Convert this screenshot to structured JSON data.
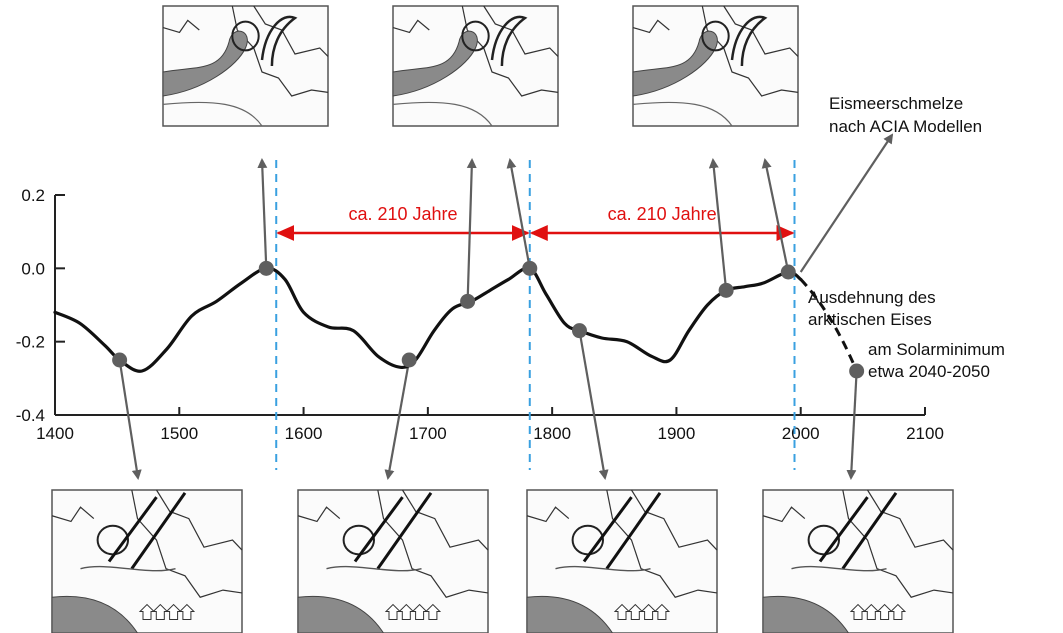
{
  "chart_data": {
    "type": "line",
    "x": [
      1400,
      1420,
      1440,
      1452,
      1470,
      1490,
      1510,
      1530,
      1550,
      1570,
      1585,
      1600,
      1620,
      1640,
      1660,
      1678,
      1690,
      1705,
      1720,
      1735,
      1750,
      1765,
      1782,
      1795,
      1810,
      1822,
      1840,
      1860,
      1880,
      1895,
      1910,
      1925,
      1940,
      1955,
      1970,
      1990,
      2000
    ],
    "y": [
      -0.12,
      -0.15,
      -0.21,
      -0.25,
      -0.28,
      -0.22,
      -0.13,
      -0.09,
      -0.04,
      0.0,
      -0.03,
      -0.12,
      -0.16,
      -0.17,
      -0.24,
      -0.27,
      -0.25,
      -0.17,
      -0.11,
      -0.09,
      -0.06,
      -0.03,
      0.0,
      -0.07,
      -0.15,
      -0.17,
      -0.19,
      -0.2,
      -0.24,
      -0.25,
      -0.17,
      -0.1,
      -0.06,
      -0.05,
      -0.04,
      -0.01,
      -0.03
    ],
    "xlim": [
      1400,
      2100
    ],
    "ylim": [
      -0.4,
      0.2
    ],
    "x_ticks": [
      1400,
      1500,
      1600,
      1700,
      1800,
      1900,
      2000,
      2100
    ],
    "y_ticks": [
      0.2,
      0.0,
      -0.2,
      -0.4
    ],
    "x_tick_labels": [
      "1400",
      "1500",
      "1600",
      "1700",
      "1800",
      "1900",
      "2000",
      "2100"
    ],
    "y_tick_labels": [
      "0.2",
      "0.0",
      "-0.2",
      "-0.4"
    ],
    "markers": [
      {
        "x": 1452,
        "y": -0.25
      },
      {
        "x": 1570,
        "y": 0.0
      },
      {
        "x": 1685,
        "y": -0.25
      },
      {
        "x": 1732,
        "y": -0.09
      },
      {
        "x": 1782,
        "y": 0.0
      },
      {
        "x": 1822,
        "y": -0.17
      },
      {
        "x": 1940,
        "y": -0.06
      },
      {
        "x": 1990,
        "y": -0.01
      },
      {
        "x": 2045,
        "y": -0.28
      }
    ],
    "vlines": [
      1578,
      1782,
      1995
    ],
    "spans": [
      {
        "from": 1578,
        "to": 1782,
        "label": "ca. 210 Jahre"
      },
      {
        "from": 1782,
        "to": 1995,
        "label": "ca. 210 Jahre"
      }
    ],
    "extrapolation": {
      "from_x": 2000,
      "from_y": -0.03,
      "to_x": 2045,
      "to_y": -0.28
    },
    "annotations": [
      {
        "lines": [
          "Eismeerschmelze",
          "nach ACIA Modellen"
        ]
      },
      {
        "lines": [
          "Ausdehnung des",
          "arktischen Eises"
        ]
      },
      {
        "lines": [
          "am Solarminimum",
          "etwa 2040-2050"
        ]
      }
    ],
    "grid": false,
    "title": "",
    "xlabel": "",
    "ylabel": ""
  },
  "colors": {
    "line": "#111111",
    "marker": "#5f5f5f",
    "arrow": "#5f5f5f",
    "span": "#e01010",
    "vline": "#3aa0e0",
    "map_land": "#ffffff",
    "map_sea": "#f4f4f4",
    "map_flow": "#8a8a8a"
  },
  "thumbnails": {
    "top": [
      {
        "name": "map-1580"
      },
      {
        "name": "map-1780"
      },
      {
        "name": "map-1990"
      }
    ],
    "bottom": [
      {
        "name": "map-1460"
      },
      {
        "name": "map-1680"
      },
      {
        "name": "map-1830"
      },
      {
        "name": "map-2045"
      }
    ]
  }
}
